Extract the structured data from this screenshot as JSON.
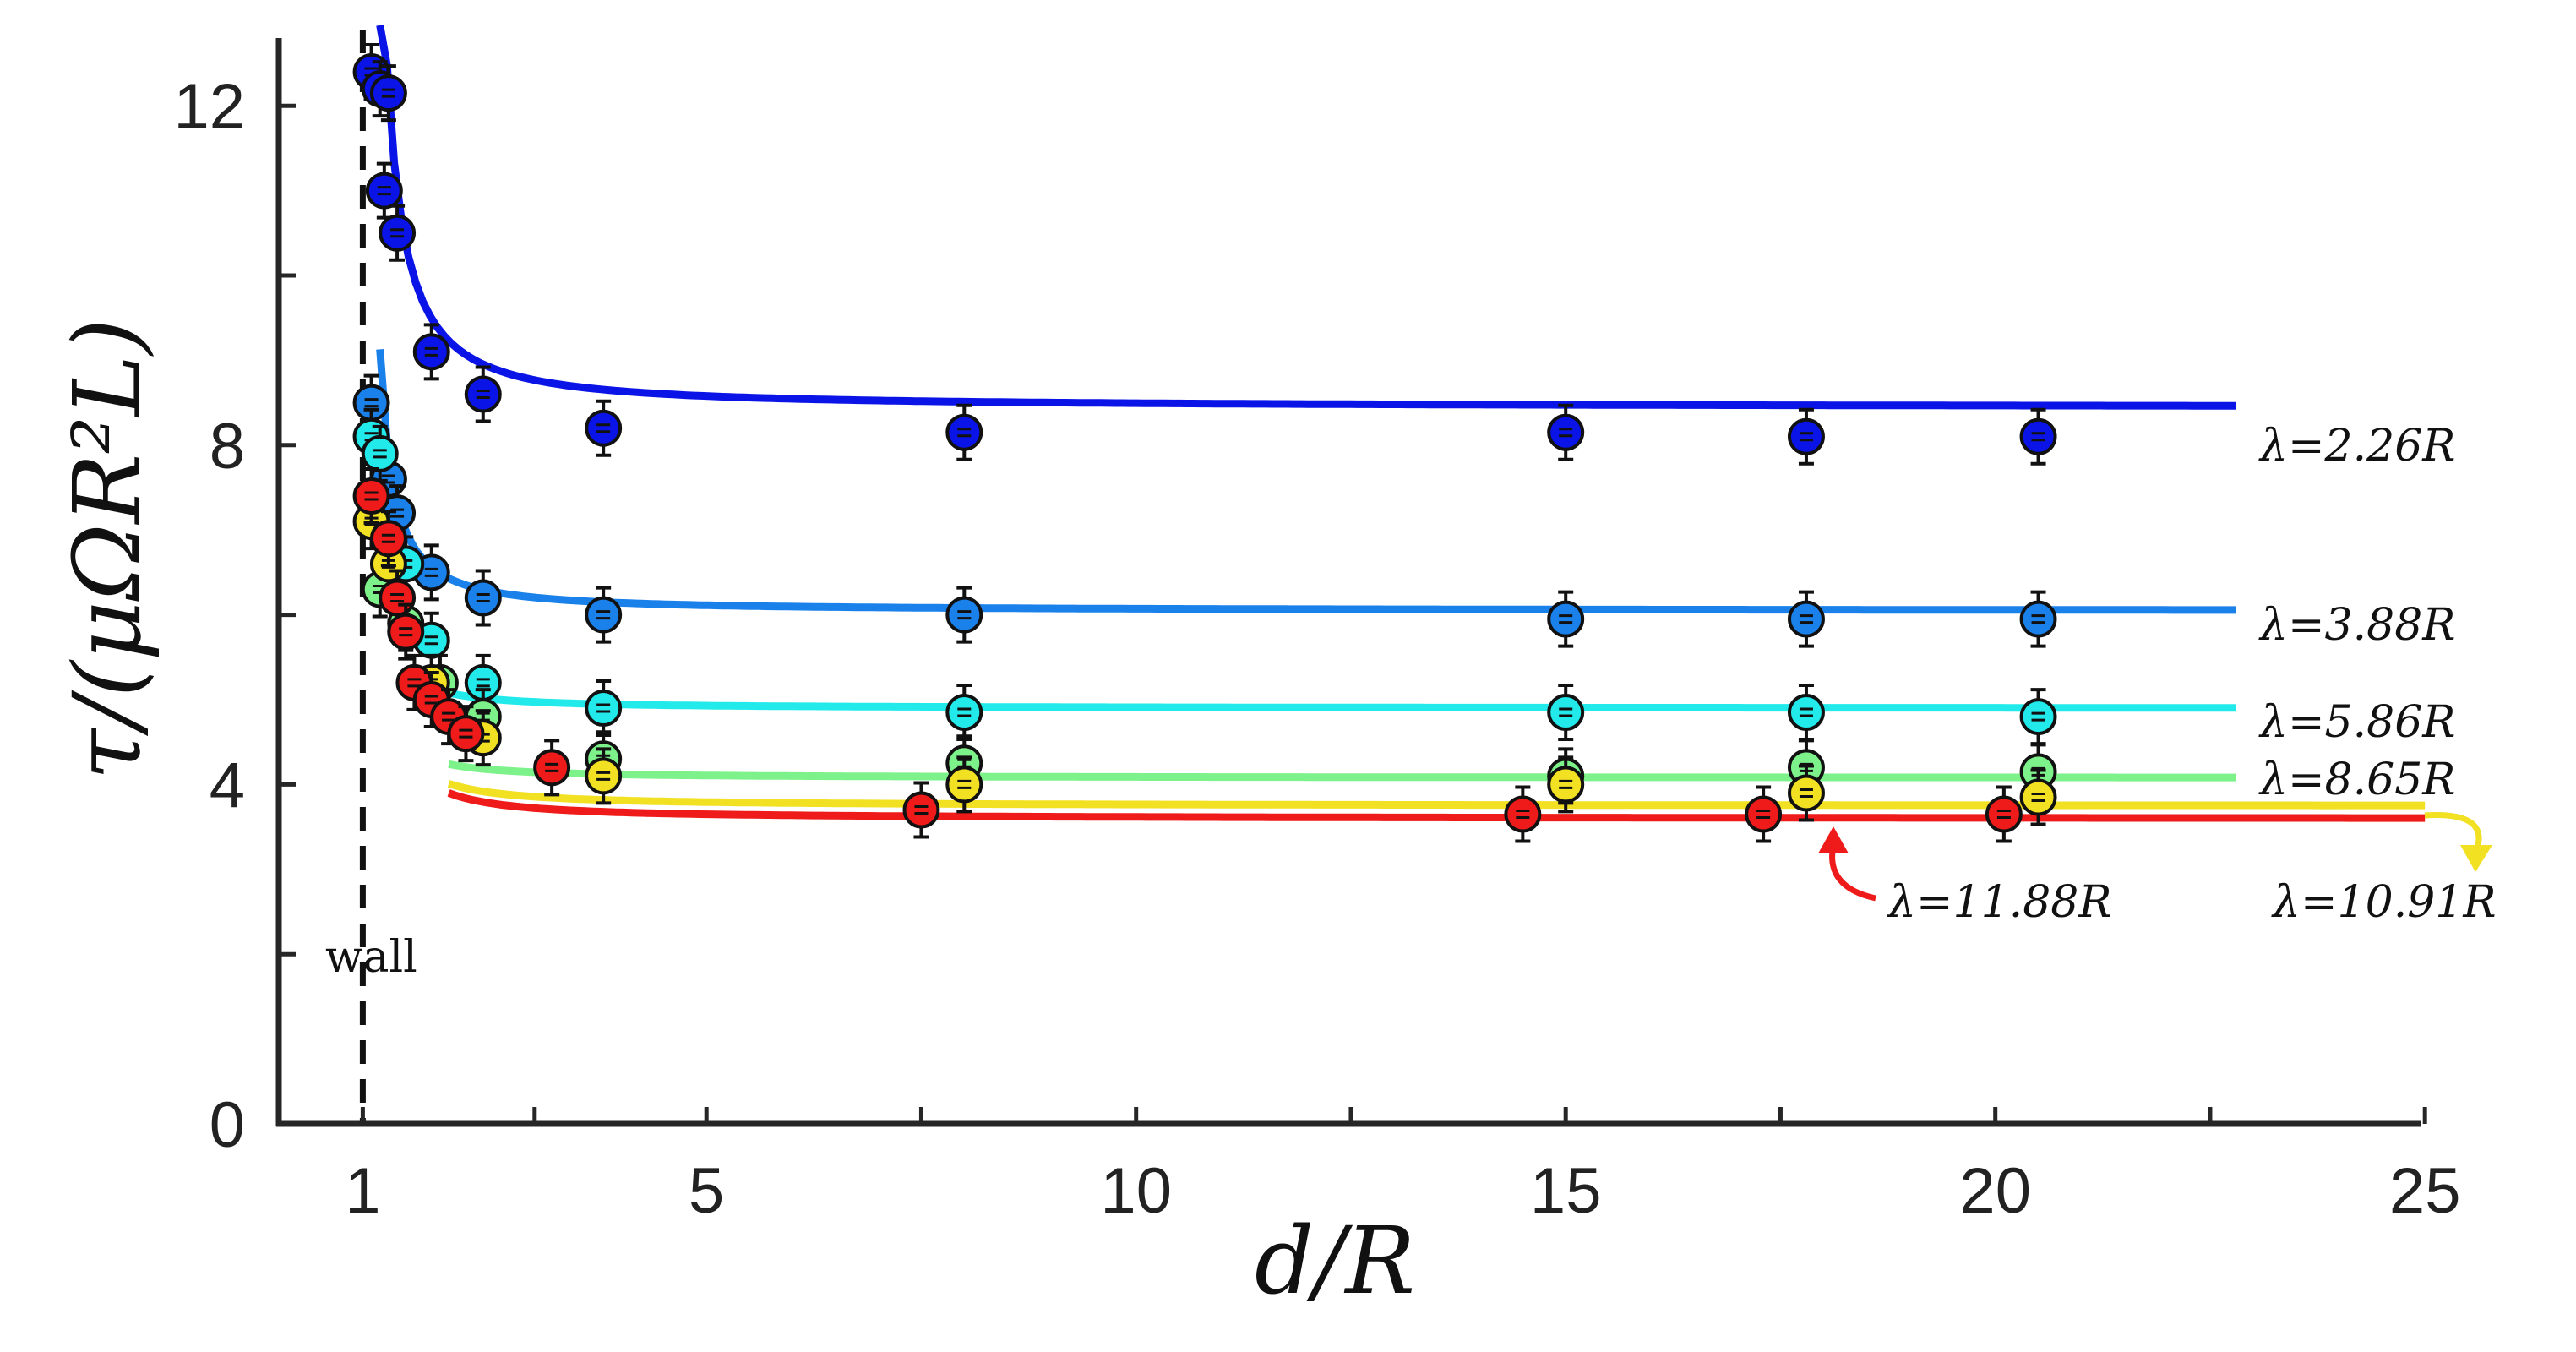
{
  "chart_data": {
    "type": "line",
    "title": "",
    "xlabel": "d/R",
    "ylabel": "τ/(μΩR²L)",
    "xlim": [
      0,
      25
    ],
    "ylim": [
      0,
      13
    ],
    "xticks": [
      1,
      5,
      10,
      15,
      20,
      25
    ],
    "xtick_labels": [
      "1",
      "5",
      "10",
      "15",
      "20",
      "25"
    ],
    "yticks": [
      0,
      4,
      8,
      12
    ],
    "ytick_labels": [
      "0",
      "4",
      "8",
      "12"
    ],
    "grid": false,
    "wall": {
      "x": 1,
      "label": "wall"
    },
    "series": [
      {
        "name": "λ=2.26R",
        "lambda_label": "λ=2.26R",
        "color": "#0a14e6",
        "asymptote": 8.45,
        "amp": 0.78,
        "curve_start": 1.2,
        "curve_end": 22.8,
        "points": [
          {
            "x": 1.1,
            "y": 12.4
          },
          {
            "x": 1.2,
            "y": 12.2
          },
          {
            "x": 1.3,
            "y": 12.15
          },
          {
            "x": 1.25,
            "y": 11.0
          },
          {
            "x": 1.4,
            "y": 10.5
          },
          {
            "x": 1.8,
            "y": 9.1
          },
          {
            "x": 2.4,
            "y": 8.6
          },
          {
            "x": 3.8,
            "y": 8.2
          },
          {
            "x": 8.0,
            "y": 8.15
          },
          {
            "x": 15.0,
            "y": 8.15
          },
          {
            "x": 17.8,
            "y": 8.1
          },
          {
            "x": 20.5,
            "y": 8.1
          }
        ]
      },
      {
        "name": "λ=3.88R",
        "lambda_label": "λ=3.88R",
        "color": "#1a80ea",
        "asymptote": 6.05,
        "amp": 0.38,
        "curve_start": 1.2,
        "curve_end": 22.8,
        "points": [
          {
            "x": 1.1,
            "y": 8.5
          },
          {
            "x": 1.3,
            "y": 7.6
          },
          {
            "x": 1.4,
            "y": 7.2
          },
          {
            "x": 1.8,
            "y": 6.5
          },
          {
            "x": 2.4,
            "y": 6.2
          },
          {
            "x": 3.8,
            "y": 6.0
          },
          {
            "x": 8.0,
            "y": 6.0
          },
          {
            "x": 15.0,
            "y": 5.95
          },
          {
            "x": 17.8,
            "y": 5.95
          },
          {
            "x": 20.5,
            "y": 5.95
          }
        ]
      },
      {
        "name": "λ=5.86R",
        "lambda_label": "λ=5.86R",
        "color": "#22eaea",
        "asymptote": 4.9,
        "amp": 0.18,
        "curve_start": 1.9,
        "curve_end": 22.8,
        "points": [
          {
            "x": 1.1,
            "y": 8.1
          },
          {
            "x": 1.2,
            "y": 7.9
          },
          {
            "x": 1.5,
            "y": 6.6
          },
          {
            "x": 1.8,
            "y": 5.7
          },
          {
            "x": 2.4,
            "y": 5.2
          },
          {
            "x": 3.8,
            "y": 4.9
          },
          {
            "x": 8.0,
            "y": 4.85
          },
          {
            "x": 15.0,
            "y": 4.85
          },
          {
            "x": 17.8,
            "y": 4.85
          },
          {
            "x": 20.5,
            "y": 4.8
          }
        ]
      },
      {
        "name": "λ=8.65R",
        "lambda_label": "λ=8.65R",
        "color": "#7ef28a",
        "asymptote": 4.08,
        "amp": 0.16,
        "curve_start": 2.0,
        "curve_end": 22.8,
        "points": [
          {
            "x": 1.2,
            "y": 6.3
          },
          {
            "x": 1.5,
            "y": 5.9
          },
          {
            "x": 1.9,
            "y": 5.2
          },
          {
            "x": 2.4,
            "y": 4.8
          },
          {
            "x": 3.8,
            "y": 4.3
          },
          {
            "x": 8.0,
            "y": 4.25
          },
          {
            "x": 15.0,
            "y": 4.1
          },
          {
            "x": 17.8,
            "y": 4.2
          },
          {
            "x": 20.5,
            "y": 4.15
          }
        ]
      },
      {
        "name": "λ=10.91R",
        "lambda_label": "λ=10.91R",
        "color": "#f2e022",
        "asymptote": 3.75,
        "amp": 0.26,
        "curve_start": 2.0,
        "curve_end": 25.0,
        "points": [
          {
            "x": 1.1,
            "y": 7.1
          },
          {
            "x": 1.3,
            "y": 6.6
          },
          {
            "x": 1.8,
            "y": 5.2
          },
          {
            "x": 2.4,
            "y": 4.55
          },
          {
            "x": 3.8,
            "y": 4.1
          },
          {
            "x": 8.0,
            "y": 4.0
          },
          {
            "x": 15.0,
            "y": 4.0
          },
          {
            "x": 17.8,
            "y": 3.9
          },
          {
            "x": 20.5,
            "y": 3.85
          }
        ]
      },
      {
        "name": "λ=11.88R",
        "lambda_label": "λ=11.88R",
        "color": "#ef1a1a",
        "asymptote": 3.6,
        "amp": 0.3,
        "curve_start": 2.0,
        "curve_end": 25.0,
        "points": [
          {
            "x": 1.1,
            "y": 7.4
          },
          {
            "x": 1.3,
            "y": 6.9
          },
          {
            "x": 1.4,
            "y": 6.2
          },
          {
            "x": 1.5,
            "y": 5.8
          },
          {
            "x": 1.6,
            "y": 5.2
          },
          {
            "x": 1.8,
            "y": 5.0
          },
          {
            "x": 2.0,
            "y": 4.8
          },
          {
            "x": 2.2,
            "y": 4.6
          },
          {
            "x": 3.2,
            "y": 4.2
          },
          {
            "x": 7.5,
            "y": 3.7
          },
          {
            "x": 14.5,
            "y": 3.65
          },
          {
            "x": 17.3,
            "y": 3.65
          },
          {
            "x": 20.1,
            "y": 3.65
          }
        ]
      }
    ]
  }
}
